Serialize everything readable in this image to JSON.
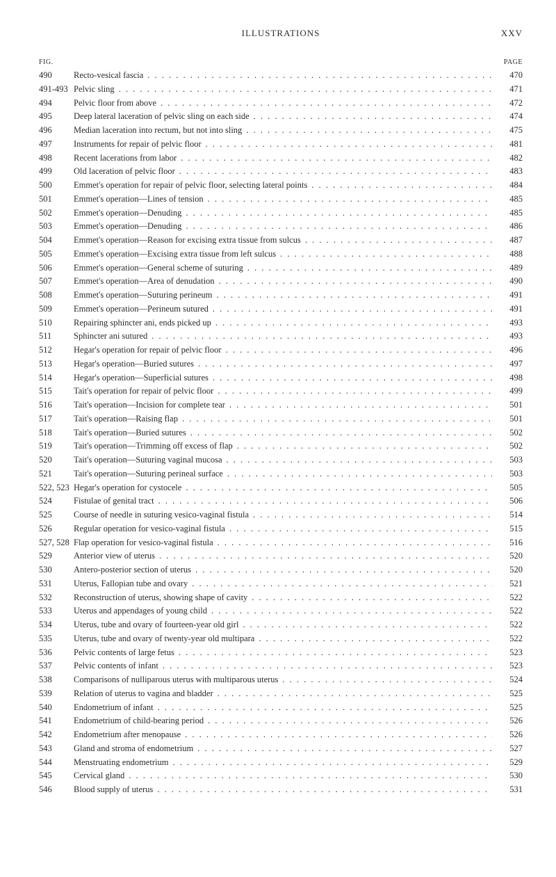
{
  "header": {
    "title": "ILLUSTRATIONS",
    "roman": "XXV"
  },
  "columns": {
    "left": "FIG.",
    "right": "PAGE"
  },
  "entries": [
    {
      "fig": "490",
      "title": "Recto-vesical fascia",
      "page": "470"
    },
    {
      "fig": "491-493",
      "title": "Pelvic sling",
      "page": "471"
    },
    {
      "fig": "494",
      "title": "Pelvic floor from above",
      "page": "472"
    },
    {
      "fig": "495",
      "title": "Deep lateral laceration of pelvic sling on each side",
      "page": "474"
    },
    {
      "fig": "496",
      "title": "Median laceration into rectum, but not into sling",
      "page": "475"
    },
    {
      "fig": "497",
      "title": "Instruments for repair of pelvic floor",
      "page": "481"
    },
    {
      "fig": "498",
      "title": "Recent lacerations from labor",
      "page": "482"
    },
    {
      "fig": "499",
      "title": "Old laceration of pelvic floor",
      "page": "483"
    },
    {
      "fig": "500",
      "title": "Emmet's operation for repair of pelvic floor, selecting lateral points",
      "page": "484"
    },
    {
      "fig": "501",
      "title": "Emmet's operation—Lines of tension",
      "page": "485"
    },
    {
      "fig": "502",
      "title": "Emmet's operation—Denuding",
      "page": "485"
    },
    {
      "fig": "503",
      "title": "Emmet's operation—Denuding",
      "page": "486"
    },
    {
      "fig": "504",
      "title": "Emmet's operation—Reason for excising extra tissue from sulcus",
      "page": "487"
    },
    {
      "fig": "505",
      "title": "Emmet's operation—Excising extra tissue from left sulcus",
      "page": "488"
    },
    {
      "fig": "506",
      "title": "Emmet's operation—General scheme of suturing",
      "page": "489"
    },
    {
      "fig": "507",
      "title": "Emmet's operation—Area of denudation",
      "page": "490"
    },
    {
      "fig": "508",
      "title": "Emmet's operation—Suturing perineum",
      "page": "491"
    },
    {
      "fig": "509",
      "title": "Emmet's operation—Perineum sutured",
      "page": "491"
    },
    {
      "fig": "510",
      "title": "Repairing sphincter ani, ends picked up",
      "page": "493"
    },
    {
      "fig": "511",
      "title": "Sphincter ani sutured",
      "page": "493"
    },
    {
      "fig": "512",
      "title": "Hegar's operation for repair of pelvic floor",
      "page": "496"
    },
    {
      "fig": "513",
      "title": "Hegar's operation—Buried sutures",
      "page": "497"
    },
    {
      "fig": "514",
      "title": "Hegar's operation—Superficial sutures",
      "page": "498"
    },
    {
      "fig": "515",
      "title": "Tait's operation for repair of pelvic floor",
      "page": "499"
    },
    {
      "fig": "516",
      "title": "Tait's operation—Incision for complete tear",
      "page": "501"
    },
    {
      "fig": "517",
      "title": "Tait's operation—Raising flap",
      "page": "501"
    },
    {
      "fig": "518",
      "title": "Tait's operation—Buried sutures",
      "page": "502"
    },
    {
      "fig": "519",
      "title": "Tait's operation—Trimming off excess of flap",
      "page": "502"
    },
    {
      "fig": "520",
      "title": "Tait's operation—Suturing vaginal mucosa",
      "page": "503"
    },
    {
      "fig": "521",
      "title": "Tait's operation—Suturing perineal surface",
      "page": "503"
    },
    {
      "fig": "522, 523",
      "title": "Hegar's operation for cystocele",
      "page": "505"
    },
    {
      "fig": "524",
      "title": "Fistulae of genital tract",
      "page": "506"
    },
    {
      "fig": "525",
      "title": "Course of needle in suturing vesico-vaginal fistula",
      "page": "514"
    },
    {
      "fig": "526",
      "title": "Regular operation for vesico-vaginal fistula",
      "page": "515"
    },
    {
      "fig": "527, 528",
      "title": "Flap operation for vesico-vaginal fistula",
      "page": "516"
    },
    {
      "fig": "529",
      "title": "Anterior view of uterus",
      "page": "520"
    },
    {
      "fig": "530",
      "title": "Antero-posterior section of uterus",
      "page": "520"
    },
    {
      "fig": "531",
      "title": "Uterus, Fallopian tube and ovary",
      "page": "521"
    },
    {
      "fig": "532",
      "title": "Reconstruction of uterus, showing shape of cavity",
      "page": "522"
    },
    {
      "fig": "533",
      "title": "Uterus and appendages of young child",
      "page": "522"
    },
    {
      "fig": "534",
      "title": "Uterus, tube and ovary of fourteen-year old girl",
      "page": "522"
    },
    {
      "fig": "535",
      "title": "Uterus, tube and ovary of twenty-year old multipara",
      "page": "522"
    },
    {
      "fig": "536",
      "title": "Pelvic contents of large fetus",
      "page": "523"
    },
    {
      "fig": "537",
      "title": "Pelvic contents of infant",
      "page": "523"
    },
    {
      "fig": "538",
      "title": "Comparisons of nulliparous uterus with multiparous uterus",
      "page": "524"
    },
    {
      "fig": "539",
      "title": "Relation of uterus to vagina and bladder",
      "page": "525"
    },
    {
      "fig": "540",
      "title": "Endometrium of infant",
      "page": "525"
    },
    {
      "fig": "541",
      "title": "Endometrium of child-bearing period",
      "page": "526"
    },
    {
      "fig": "542",
      "title": "Endometrium after menopause",
      "page": "526"
    },
    {
      "fig": "543",
      "title": "Gland and stroma of endometrium",
      "page": "527"
    },
    {
      "fig": "544",
      "title": "Menstruating endometrium",
      "page": "529"
    },
    {
      "fig": "545",
      "title": "Cervical gland",
      "page": "530"
    },
    {
      "fig": "546",
      "title": "Blood supply of uterus",
      "page": "531"
    }
  ]
}
